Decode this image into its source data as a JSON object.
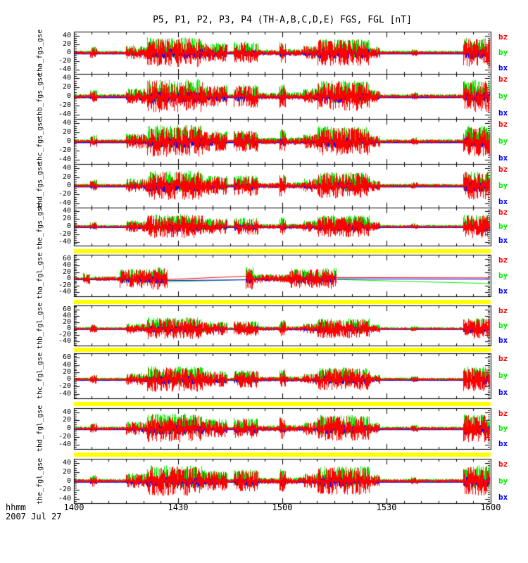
{
  "title": "P5, P1, P2, P3, P4 (TH-A,B,C,D,E) FGS, FGL [nT]",
  "x_axis": {
    "unit_label": "hhmm",
    "date": "2007 Jul 27",
    "range_minutes": [
      0,
      120
    ],
    "minor_step_minutes": 5,
    "major_step_minutes": 30,
    "ticks": [
      {
        "label": "1400",
        "minutes": 0
      },
      {
        "label": "1430",
        "minutes": 30
      },
      {
        "label": "1500",
        "minutes": 60
      },
      {
        "label": "1530",
        "minutes": 90
      },
      {
        "label": "1600",
        "minutes": 120
      }
    ]
  },
  "legend": {
    "position": "right-of-each-panel",
    "entries": [
      {
        "label": "bz",
        "color": "#ff0000"
      },
      {
        "label": "by",
        "color": "#00ee00"
      },
      {
        "label": "bx",
        "color": "#0000ff"
      }
    ]
  },
  "colors": {
    "background": "#ffffff",
    "frame": "#000000",
    "quality_bar": "#ffff00",
    "bz": "#ff0000",
    "by": "#00ee00",
    "bx": "#0000ff"
  },
  "quality_bars": {
    "count": 5,
    "note": "solid yellow flag bars between FGL panels",
    "color": "#ffff00"
  },
  "chart_data": {
    "type": "line",
    "title": "P5, P1, P2, P3, P4 (TH-A,B,C,D,E) FGS, FGL [nT]",
    "x_unit": "time hhmm UT, 2007 Jul 27, from 1400 to 1600",
    "y_unit": "nT",
    "grid": false,
    "series_per_panel": [
      "bz",
      "by",
      "bx"
    ],
    "trace_styles": {
      "bz": {
        "color": "#ff0000",
        "scale": 1.0,
        "bias": 0,
        "pos_frac": 0.5,
        "hi": 1.0,
        "lo": -1.0
      },
      "by": {
        "color": "#00ee00",
        "scale": 1.0,
        "bias": 1,
        "pos_frac": 0.62,
        "hi": 1.05,
        "lo": -0.5
      },
      "bx": {
        "color": "#0000ff",
        "scale": 0.5,
        "bias": -2.5,
        "pos_frac": 0.5,
        "hi": 0.75,
        "lo": -0.75
      }
    },
    "draw_order": [
      "by",
      "bx",
      "bz"
    ],
    "profiles": {
      "default": {
        "base_amp": 4,
        "bursts": [
          [
            4.5,
            6.5,
            13
          ],
          [
            15,
            21,
            16
          ],
          [
            21,
            37,
            34
          ],
          [
            37,
            44,
            22
          ],
          [
            46,
            53,
            24
          ],
          [
            53,
            59,
            7
          ],
          [
            59,
            61,
            26
          ],
          [
            61,
            66,
            8
          ],
          [
            66,
            70,
            16
          ],
          [
            70,
            85,
            31
          ],
          [
            85,
            88,
            13
          ],
          [
            97,
            99,
            8
          ],
          [
            112,
            120,
            33
          ]
        ]
      },
      "tha_fgl": {
        "base_amp": 4,
        "bursts": [
          [
            2.5,
            4.5,
            16
          ],
          [
            6,
            13,
            7
          ],
          [
            13,
            22,
            28
          ],
          [
            22,
            26.8,
            32
          ],
          [
            49.3,
            51.5,
            34
          ],
          [
            51.5,
            62,
            13
          ],
          [
            62,
            69,
            28
          ],
          [
            69,
            75.6,
            30
          ]
        ]
      }
    },
    "panels": [
      {
        "id": "tha_fgs_gse",
        "yticks": [
          40,
          20,
          0,
          -20,
          -40
        ],
        "ylim": [
          -50,
          50
        ],
        "profile": "default",
        "seed": 11,
        "amp_scale": 1.0
      },
      {
        "id": "thb_fgs_gse",
        "yticks": [
          40,
          20,
          0,
          -20,
          -40
        ],
        "ylim": [
          -50,
          50
        ],
        "profile": "default",
        "seed": 22,
        "amp_scale": 1.05
      },
      {
        "id": "thc_fgs_gse",
        "yticks": [
          40,
          20,
          0,
          -20,
          -40
        ],
        "ylim": [
          -50,
          50
        ],
        "profile": "default",
        "seed": 33,
        "amp_scale": 1.0
      },
      {
        "id": "thd_fgs_gse",
        "yticks": [
          40,
          20,
          0,
          -20,
          -40
        ],
        "ylim": [
          -50,
          50
        ],
        "profile": "default",
        "seed": 44,
        "amp_scale": 0.95
      },
      {
        "id": "the_fgs_gse",
        "yticks": [
          40,
          20,
          0,
          -20,
          -40
        ],
        "ylim": [
          -50,
          50
        ],
        "profile": "default",
        "seed": 55,
        "amp_scale": 0.9
      },
      {
        "id": "tha_fgl_gse",
        "yticks": [
          60,
          40,
          20,
          0,
          -20,
          -40
        ],
        "ylim": [
          -52,
          72
        ],
        "profile": "tha_fgl",
        "seed": 66,
        "amp_scale": 1.0,
        "gaps": [
          {
            "t0": 26.8,
            "t1": 49.3,
            "bz": [
              -1,
              9
            ],
            "by": [
              -8,
              -1
            ],
            "bx": [
              -4,
              -2
            ]
          },
          {
            "t0": 75.6,
            "t1": 120.0,
            "bz": [
              5,
              4
            ],
            "by": [
              -1,
              -13
            ],
            "bx": [
              1,
              0
            ]
          }
        ]
      },
      {
        "id": "thb_fgl_gse",
        "yticks": [
          60,
          40,
          20,
          0,
          -20,
          -40
        ],
        "ylim": [
          -52,
          72
        ],
        "profile": "default",
        "seed": 77,
        "amp_scale": 0.95
      },
      {
        "id": "thc_fgl_gse",
        "yticks": [
          60,
          40,
          20,
          0,
          -20,
          -40
        ],
        "ylim": [
          -52,
          72
        ],
        "profile": "default",
        "seed": 88,
        "amp_scale": 1.0
      },
      {
        "id": "thd_fgl_gse",
        "yticks": [
          40,
          20,
          0,
          -20,
          -40
        ],
        "ylim": [
          -50,
          50
        ],
        "profile": "default",
        "seed": 99,
        "amp_scale": 1.0
      },
      {
        "id": "the_fgl_gse",
        "yticks": [
          40,
          20,
          0,
          -20,
          -40
        ],
        "ylim": [
          -50,
          50
        ],
        "profile": "default",
        "seed": 110,
        "amp_scale": 1.0
      }
    ]
  }
}
